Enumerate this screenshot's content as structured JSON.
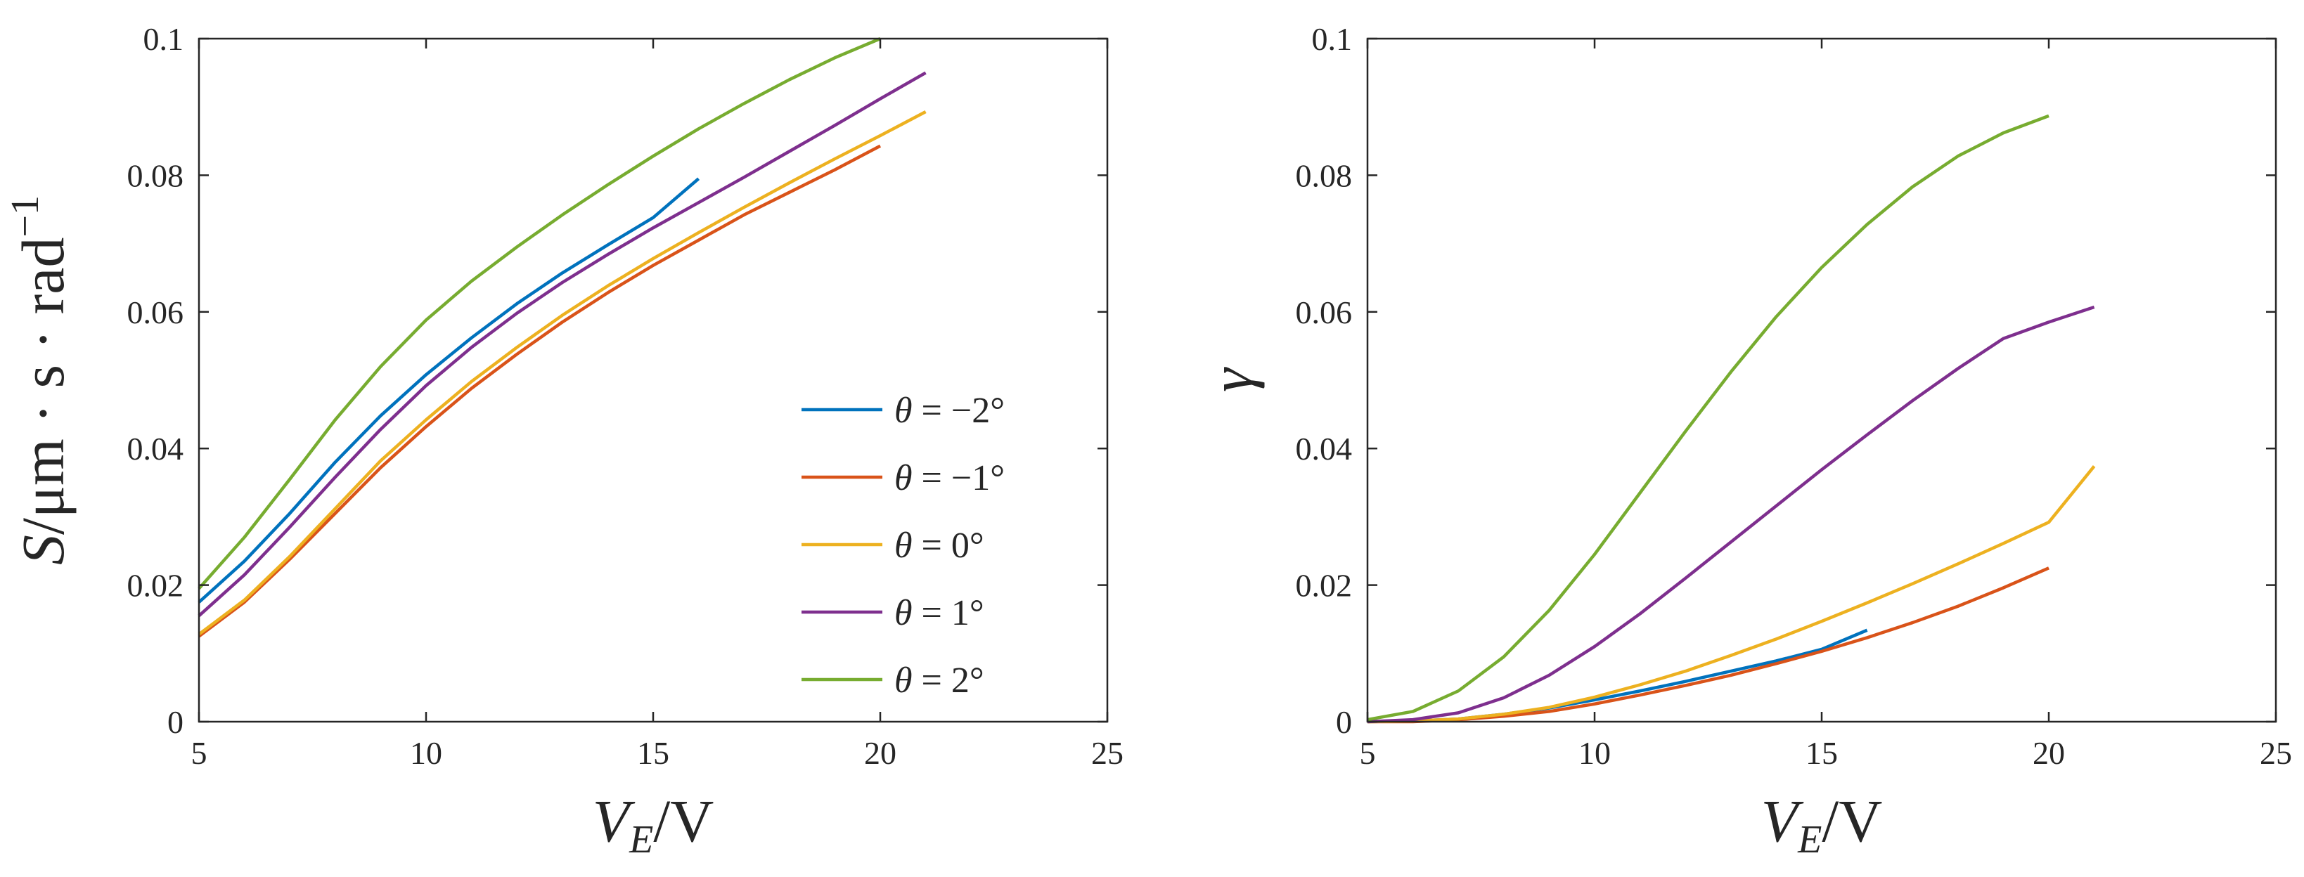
{
  "chart_data": [
    {
      "type": "line",
      "panel": "left",
      "title": "",
      "xlabel_main": "V",
      "xlabel_sub": "E",
      "xlabel_unit": "/V",
      "ylabel": "S/μm · s · rad",
      "ylabel_sup": "−1",
      "xlim": [
        5,
        25
      ],
      "ylim": [
        0,
        0.1
      ],
      "xticks": [
        "5",
        "10",
        "15",
        "20",
        "25"
      ],
      "yticks": [
        "0",
        "0.02",
        "0.04",
        "0.06",
        "0.08",
        "0.1"
      ],
      "legend_position": "center-right",
      "series": [
        {
          "name": "θ = −2°",
          "color": "#0072BD",
          "x": [
            5,
            6,
            7,
            8,
            9,
            10,
            11,
            12,
            13,
            14,
            15,
            16
          ],
          "y": [
            0.0175,
            0.0235,
            0.0305,
            0.038,
            0.0448,
            0.0508,
            0.0562,
            0.0612,
            0.0657,
            0.0698,
            0.0738,
            0.0795
          ]
        },
        {
          "name": "θ = −1°",
          "color": "#D95319",
          "x": [
            5,
            6,
            7,
            8,
            9,
            10,
            11,
            12,
            13,
            14,
            15,
            16,
            17,
            18,
            19,
            20
          ],
          "y": [
            0.0125,
            0.0175,
            0.0238,
            0.0305,
            0.0372,
            0.0432,
            0.0488,
            0.0538,
            0.0585,
            0.0628,
            0.0668,
            0.0705,
            0.0742,
            0.0775,
            0.0808,
            0.0843
          ]
        },
        {
          "name": "θ = 0°",
          "color": "#EDB120",
          "x": [
            5,
            6,
            7,
            8,
            9,
            10,
            11,
            12,
            13,
            14,
            15,
            16,
            17,
            18,
            19,
            20,
            21
          ],
          "y": [
            0.0128,
            0.0178,
            0.0242,
            0.0312,
            0.0382,
            0.0442,
            0.0498,
            0.0548,
            0.0595,
            0.0638,
            0.0678,
            0.0716,
            0.0753,
            0.0789,
            0.0824,
            0.0858,
            0.0893
          ]
        },
        {
          "name": "θ = 1°",
          "color": "#7E2F8E",
          "x": [
            5,
            6,
            7,
            8,
            9,
            10,
            11,
            12,
            13,
            14,
            15,
            16,
            17,
            18,
            19,
            20,
            21
          ],
          "y": [
            0.0155,
            0.0215,
            0.0285,
            0.0358,
            0.0428,
            0.0492,
            0.0548,
            0.0598,
            0.0643,
            0.0684,
            0.0723,
            0.076,
            0.0797,
            0.0835,
            0.0873,
            0.0912,
            0.095
          ]
        },
        {
          "name": "θ = 2°",
          "color": "#77AC30",
          "x": [
            5,
            6,
            7,
            8,
            9,
            10,
            11,
            12,
            13,
            14,
            15,
            16,
            17,
            18,
            19,
            20
          ],
          "y": [
            0.0195,
            0.027,
            0.0355,
            0.0442,
            0.052,
            0.0588,
            0.0645,
            0.0695,
            0.0742,
            0.0786,
            0.0828,
            0.0868,
            0.0905,
            0.094,
            0.0972,
            0.1
          ]
        }
      ]
    },
    {
      "type": "line",
      "panel": "right",
      "title": "",
      "xlabel_main": "V",
      "xlabel_sub": "E",
      "xlabel_unit": "/V",
      "ylabel": "γ",
      "ylabel_sup": "",
      "xlim": [
        5,
        25
      ],
      "ylim": [
        0,
        0.1
      ],
      "xticks": [
        "5",
        "10",
        "15",
        "20",
        "25"
      ],
      "yticks": [
        "0",
        "0.02",
        "0.04",
        "0.06",
        "0.08",
        "0.1"
      ],
      "series": [
        {
          "name": "θ = −2°",
          "color": "#0072BD",
          "x": [
            5,
            6,
            7,
            8,
            9,
            10,
            11,
            12,
            13,
            14,
            15,
            16
          ],
          "y": [
            0.0,
            0.0001,
            0.0004,
            0.0011,
            0.002,
            0.0032,
            0.0045,
            0.0059,
            0.0074,
            0.0089,
            0.0106,
            0.0134
          ]
        },
        {
          "name": "θ = −1°",
          "color": "#D95319",
          "x": [
            5,
            6,
            7,
            8,
            9,
            10,
            11,
            12,
            13,
            14,
            15,
            16,
            17,
            18,
            19,
            20
          ],
          "y": [
            0.0,
            0.0,
            0.0003,
            0.0008,
            0.0015,
            0.0026,
            0.0039,
            0.0053,
            0.0068,
            0.0085,
            0.0103,
            0.0123,
            0.0145,
            0.0169,
            0.0196,
            0.0225
          ]
        },
        {
          "name": "θ = 0°",
          "color": "#EDB120",
          "x": [
            5,
            6,
            7,
            8,
            9,
            10,
            11,
            12,
            13,
            14,
            15,
            16,
            17,
            18,
            19,
            20,
            21
          ],
          "y": [
            0.0,
            0.0001,
            0.0004,
            0.0011,
            0.0021,
            0.0036,
            0.0054,
            0.0074,
            0.0097,
            0.0121,
            0.0147,
            0.0174,
            0.0202,
            0.0231,
            0.0261,
            0.0292,
            0.0374
          ]
        },
        {
          "name": "θ = 1°",
          "color": "#7E2F8E",
          "x": [
            5,
            6,
            7,
            8,
            9,
            10,
            11,
            12,
            13,
            14,
            15,
            16,
            17,
            18,
            19,
            20,
            21
          ],
          "y": [
            0.0,
            0.0003,
            0.0013,
            0.0035,
            0.0068,
            0.011,
            0.0158,
            0.021,
            0.0263,
            0.0316,
            0.0369,
            0.042,
            0.047,
            0.0517,
            0.0561,
            0.0585,
            0.0607
          ]
        },
        {
          "name": "θ = 2°",
          "color": "#77AC30",
          "x": [
            5,
            6,
            7,
            8,
            9,
            10,
            11,
            12,
            13,
            14,
            15,
            16,
            17,
            18,
            19,
            20
          ],
          "y": [
            0.0003,
            0.0015,
            0.0045,
            0.0095,
            0.0163,
            0.0245,
            0.0335,
            0.0425,
            0.0512,
            0.0593,
            0.0665,
            0.0728,
            0.0783,
            0.0828,
            0.0862,
            0.0887
          ]
        }
      ]
    }
  ]
}
